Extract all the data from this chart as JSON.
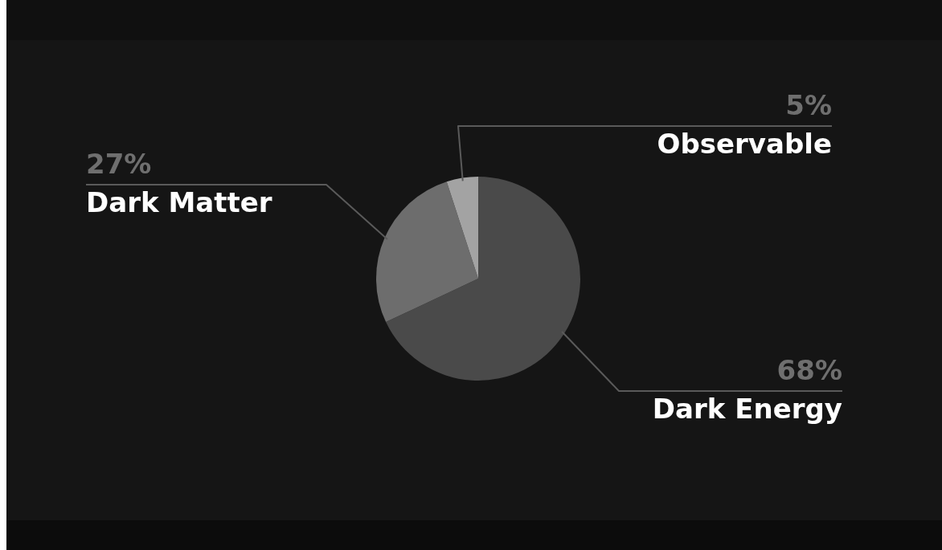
{
  "chart_data": {
    "type": "pie",
    "categories": [
      "Dark Energy",
      "Dark Matter",
      "Observable"
    ],
    "values": [
      68,
      27,
      5
    ],
    "colors": [
      "#4a4a4a",
      "#6d6d6d",
      "#a3a3a3"
    ],
    "value_labels": [
      "68%",
      "27%",
      "5%"
    ],
    "legend": false
  }
}
